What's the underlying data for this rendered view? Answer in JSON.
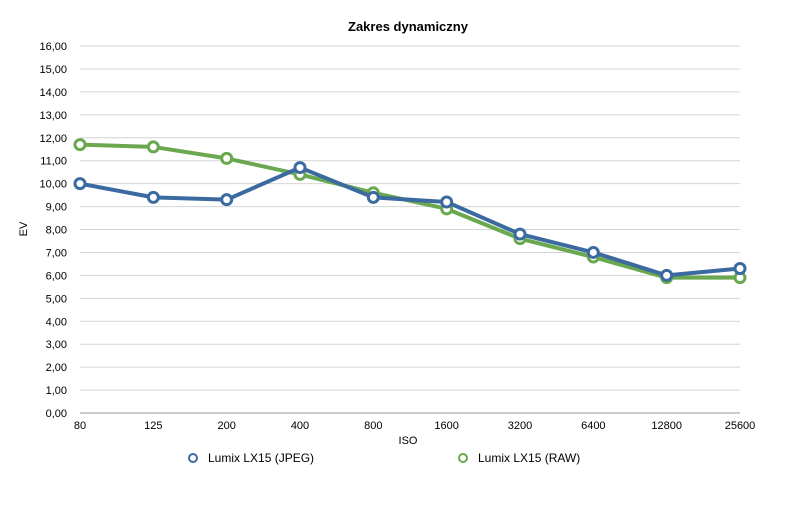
{
  "chart_data": {
    "type": "line",
    "title": "Zakres dynamiczny",
    "xlabel": "ISO",
    "ylabel": "EV",
    "categories": [
      "80",
      "125",
      "200",
      "400",
      "800",
      "1600",
      "3200",
      "6400",
      "12800",
      "25600"
    ],
    "ylim": [
      0,
      16
    ],
    "yticks": [
      "0,00",
      "1,00",
      "2,00",
      "3,00",
      "4,00",
      "5,00",
      "6,00",
      "7,00",
      "8,00",
      "9,00",
      "10,00",
      "11,00",
      "12,00",
      "13,00",
      "14,00",
      "15,00",
      "16,00"
    ],
    "grid": true,
    "legend_position": "bottom",
    "series": [
      {
        "name": "Lumix LX15 (JPEG)",
        "color": "#3a6aa0",
        "values": [
          10.0,
          9.4,
          9.3,
          10.7,
          9.4,
          9.2,
          7.8,
          7.0,
          6.0,
          6.3
        ]
      },
      {
        "name": "Lumix LX15 (RAW)",
        "color": "#6aa84f",
        "values": [
          11.7,
          11.6,
          11.1,
          10.4,
          9.6,
          8.9,
          7.6,
          6.8,
          5.9,
          5.9
        ]
      }
    ]
  }
}
